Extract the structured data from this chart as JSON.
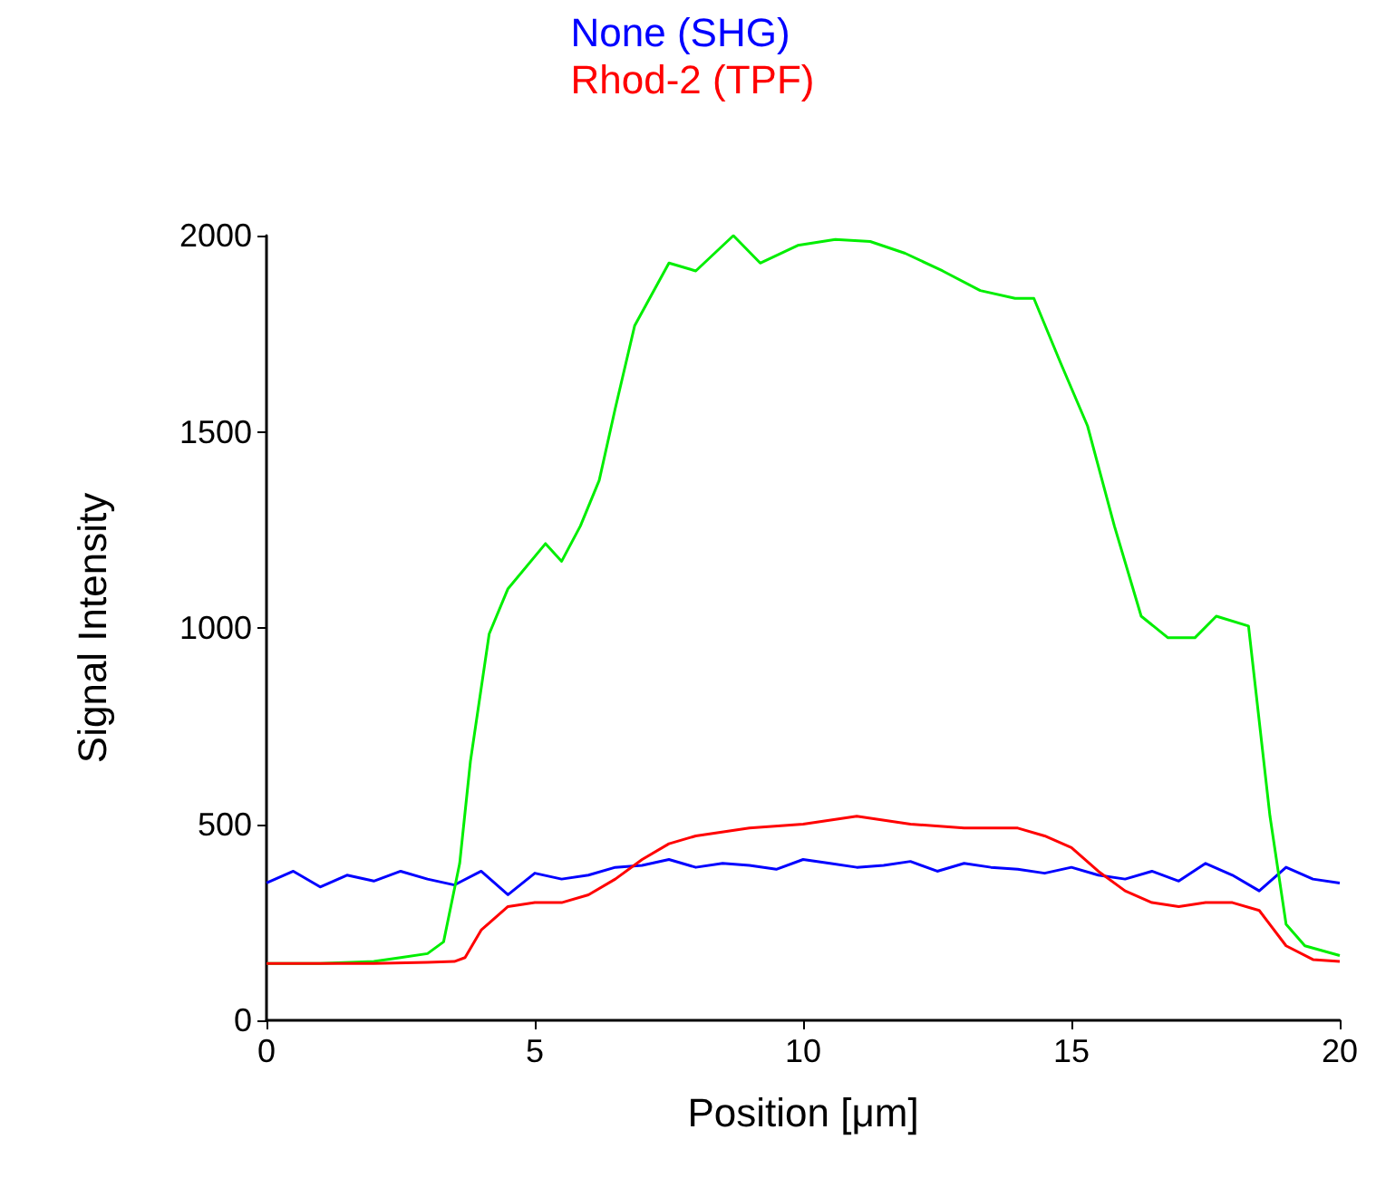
{
  "chart_data": {
    "type": "line",
    "xlabel": "Position [μm]",
    "ylabel": "Signal Intensity",
    "xlim": [
      0,
      20
    ],
    "xticks": [
      0,
      5,
      10,
      15,
      20
    ],
    "ylim": [
      0,
      2000
    ],
    "yticks": [
      0,
      500,
      1000,
      1500,
      2000
    ],
    "grid": false,
    "legend": "top",
    "marker": "none",
    "line_style": "solid",
    "series": [
      {
        "name": "None (SHG)",
        "color": "#0000ff",
        "x": [
          0,
          0.5,
          1,
          1.5,
          2,
          2.5,
          3,
          3.5,
          4,
          4.5,
          5,
          5.5,
          6,
          6.5,
          7,
          7.5,
          8,
          8.5,
          9,
          9.5,
          10,
          10.5,
          11,
          11.5,
          12,
          12.5,
          13,
          13.5,
          14,
          14.5,
          15,
          15.5,
          16,
          16.5,
          17,
          17.5,
          18,
          18.5,
          19,
          19.5,
          20
        ],
        "values": [
          350,
          380,
          340,
          370,
          355,
          380,
          360,
          345,
          380,
          320,
          375,
          360,
          370,
          390,
          395,
          410,
          390,
          400,
          395,
          385,
          410,
          400,
          390,
          395,
          405,
          380,
          400,
          390,
          385,
          375,
          390,
          370,
          360,
          380,
          355,
          400,
          370,
          330,
          390,
          360,
          350
        ]
      },
      {
        "color": "#00ee00",
        "x": [
          0,
          1,
          2,
          2.5,
          3,
          3.3,
          3.6,
          3.8,
          4.15,
          4.5,
          5.2,
          5.5,
          5.85,
          6.2,
          6.5,
          6.86,
          7.5,
          8,
          8.7,
          9.2,
          9.9,
          10.6,
          11.25,
          11.9,
          12.6,
          13.3,
          13.95,
          14.3,
          14.8,
          15.3,
          15.8,
          16.3,
          16.8,
          17.3,
          17.7,
          18.3,
          18.7,
          19,
          19.35,
          20
        ],
        "values": [
          145,
          145,
          150,
          160,
          170,
          200,
          400,
          660,
          985,
          1100,
          1215,
          1170,
          1260,
          1376,
          1560,
          1770,
          1930,
          1910,
          2000,
          1930,
          1975,
          1990,
          1985,
          1955,
          1910,
          1860,
          1840,
          1840,
          1675,
          1515,
          1260,
          1030,
          975,
          975,
          1030,
          1005,
          520,
          245,
          190,
          165
        ]
      },
      {
        "name": "Rhod-2 (TPF)",
        "color": "#ff0000",
        "x": [
          0,
          1,
          2,
          3,
          3.5,
          3.7,
          4,
          4.5,
          5,
          5.5,
          6,
          6.5,
          7,
          7.5,
          8,
          9,
          10,
          11,
          12,
          13,
          14,
          14.5,
          15,
          15.5,
          16,
          16.5,
          17,
          17.5,
          18,
          18.5,
          19,
          19.5,
          20
        ],
        "values": [
          145,
          145,
          145,
          148,
          150,
          160,
          230,
          290,
          300,
          300,
          320,
          360,
          410,
          450,
          470,
          490,
          500,
          520,
          500,
          490,
          490,
          470,
          440,
          380,
          330,
          300,
          290,
          300,
          300,
          280,
          190,
          155,
          150
        ]
      }
    ]
  }
}
